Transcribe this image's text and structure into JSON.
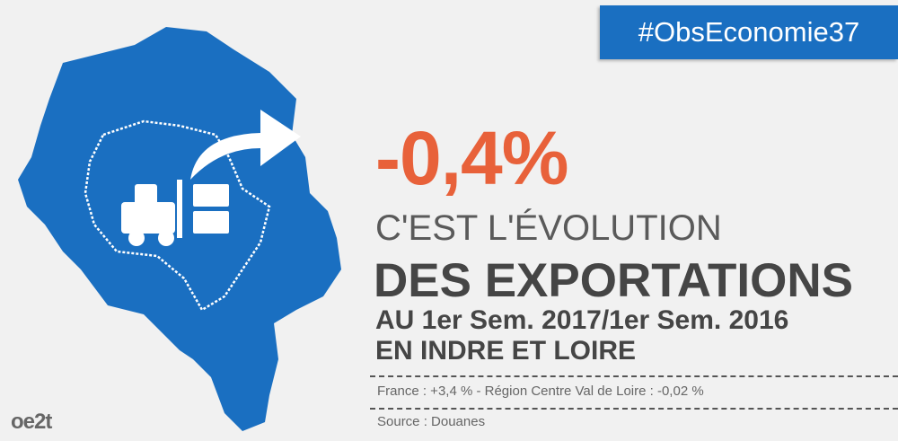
{
  "hashtag": "#ObsEconomie37",
  "headline": {
    "figure": "-0,4%",
    "line1": "C'EST L'ÉVOLUTION",
    "line2": "DES EXPORTATIONS",
    "line3": "AU 1er Sem. 2017/1er Sem. 2016",
    "line4": "EN INDRE ET LOIRE"
  },
  "note": "France : +3,4 % - Région Centre Val de Loire : -0,02 %",
  "source": "Source : Douanes",
  "logo": "oe2t"
}
